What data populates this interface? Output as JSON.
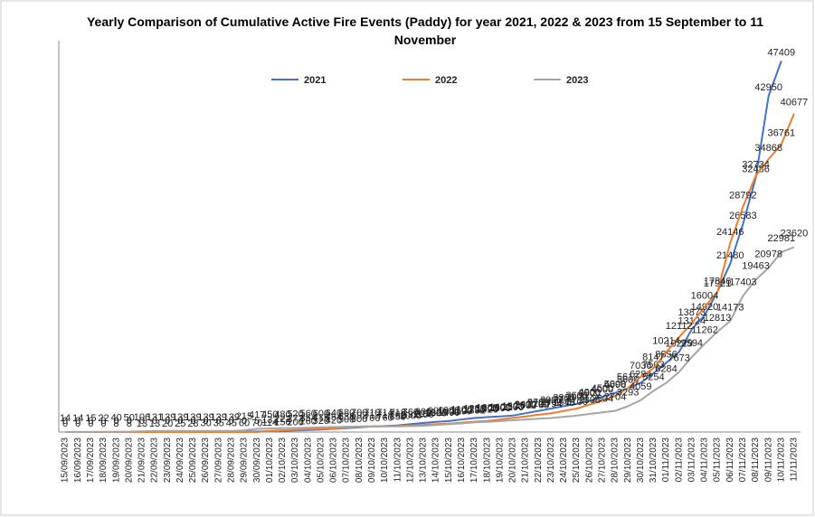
{
  "chart_data": {
    "type": "line",
    "title": "Yearly Comparison  of Cumulative Active Fire Events (Paddy) for year 2021, 2022 & 2023 from 15 September to 11 November",
    "x": [
      "15/09/2023",
      "16/09/2023",
      "17/09/2023",
      "18/09/2023",
      "19/09/2023",
      "20/09/2023",
      "21/09/2023",
      "22/09/2023",
      "23/09/2023",
      "24/09/2023",
      "25/09/2023",
      "26/09/2023",
      "27/09/2023",
      "28/09/2023",
      "29/09/2023",
      "30/09/2023",
      "01/10/2023",
      "02/10/2023",
      "03/10/2023",
      "04/10/2023",
      "05/10/2023",
      "06/10/2023",
      "07/10/2023",
      "08/10/2023",
      "09/10/2023",
      "10/10/2023",
      "11/10/2023",
      "12/10/2023",
      "13/10/2023",
      "14/10/2023",
      "15/10/2023",
      "16/10/2023",
      "17/10/2023",
      "18/10/2023",
      "19/10/2023",
      "20/10/2023",
      "21/10/2023",
      "22/10/2023",
      "23/10/2023",
      "24/10/2023",
      "25/10/2023",
      "26/10/2023",
      "27/10/2023",
      "28/10/2023",
      "29/10/2023",
      "30/10/2023",
      "31/10/2023",
      "01/11/2023",
      "02/11/2023",
      "03/11/2023",
      "04/11/2023",
      "05/11/2023",
      "06/11/2023",
      "07/11/2023",
      "08/11/2023",
      "09/11/2023",
      "10/11/2023",
      "11/11/2023"
    ],
    "series": [
      {
        "name": "2021",
        "color": "#4472c4",
        "values": [
          0,
          0,
          0,
          0,
          8,
          8,
          13,
          13,
          20,
          25,
          28,
          30,
          35,
          45,
          60,
          70,
          114,
          150,
          200,
          260,
          320,
          420,
          500,
          600,
          700,
          760,
          850,
          1000,
          1150,
          1300,
          1400,
          1600,
          1795,
          1900,
          2000,
          2100,
          2400,
          2700,
          3000,
          3300,
          3600,
          4000,
          4500,
          5000,
          5600,
          6284,
          7503,
          8856,
          10229,
          13124,
          14920,
          17921,
          21480,
          26583,
          32486,
          42950,
          47409,
          null
        ]
      },
      {
        "name": "2022",
        "color": "#ed7d31",
        "values": [
          0,
          0,
          0,
          0,
          0,
          0,
          0,
          0,
          0,
          0,
          0,
          0,
          0,
          0,
          0,
          5,
          133,
          222,
          273,
          354,
          415,
          454,
          536,
          692,
          717,
          714,
          762,
          832,
          918,
          1020,
          1070,
          1197,
          1331,
          1420,
          1600,
          1800,
          2000,
          2200,
          2400,
          2700,
          3000,
          3500,
          4000,
          4598,
          5617,
          7036,
          8147,
          10214,
          12112,
          13873,
          16004,
          17846,
          24146,
          28792,
          32734,
          34868,
          36761,
          40677
        ]
      },
      {
        "name": "2023",
        "color": "#a5a5a5",
        "values": [
          14,
          14,
          15,
          22,
          40,
          50,
          106,
          131,
          139,
          139,
          139,
          139,
          139,
          139,
          215,
          417,
          450,
          480,
          520,
          560,
          600,
          640,
          680,
          700,
          710,
          714,
          718,
          760,
          800,
          900,
          1000,
          1100,
          1238,
          1300,
          1400,
          1500,
          1600,
          1700,
          1794,
          1946,
          2100,
          2306,
          2504,
          2704,
          3293,
          4059,
          5254,
          6284,
          7673,
          9594,
          11262,
          12813,
          14173,
          17403,
          19463,
          20978,
          22981,
          23620
        ]
      }
    ],
    "ylim": [
      0,
      50000
    ]
  }
}
